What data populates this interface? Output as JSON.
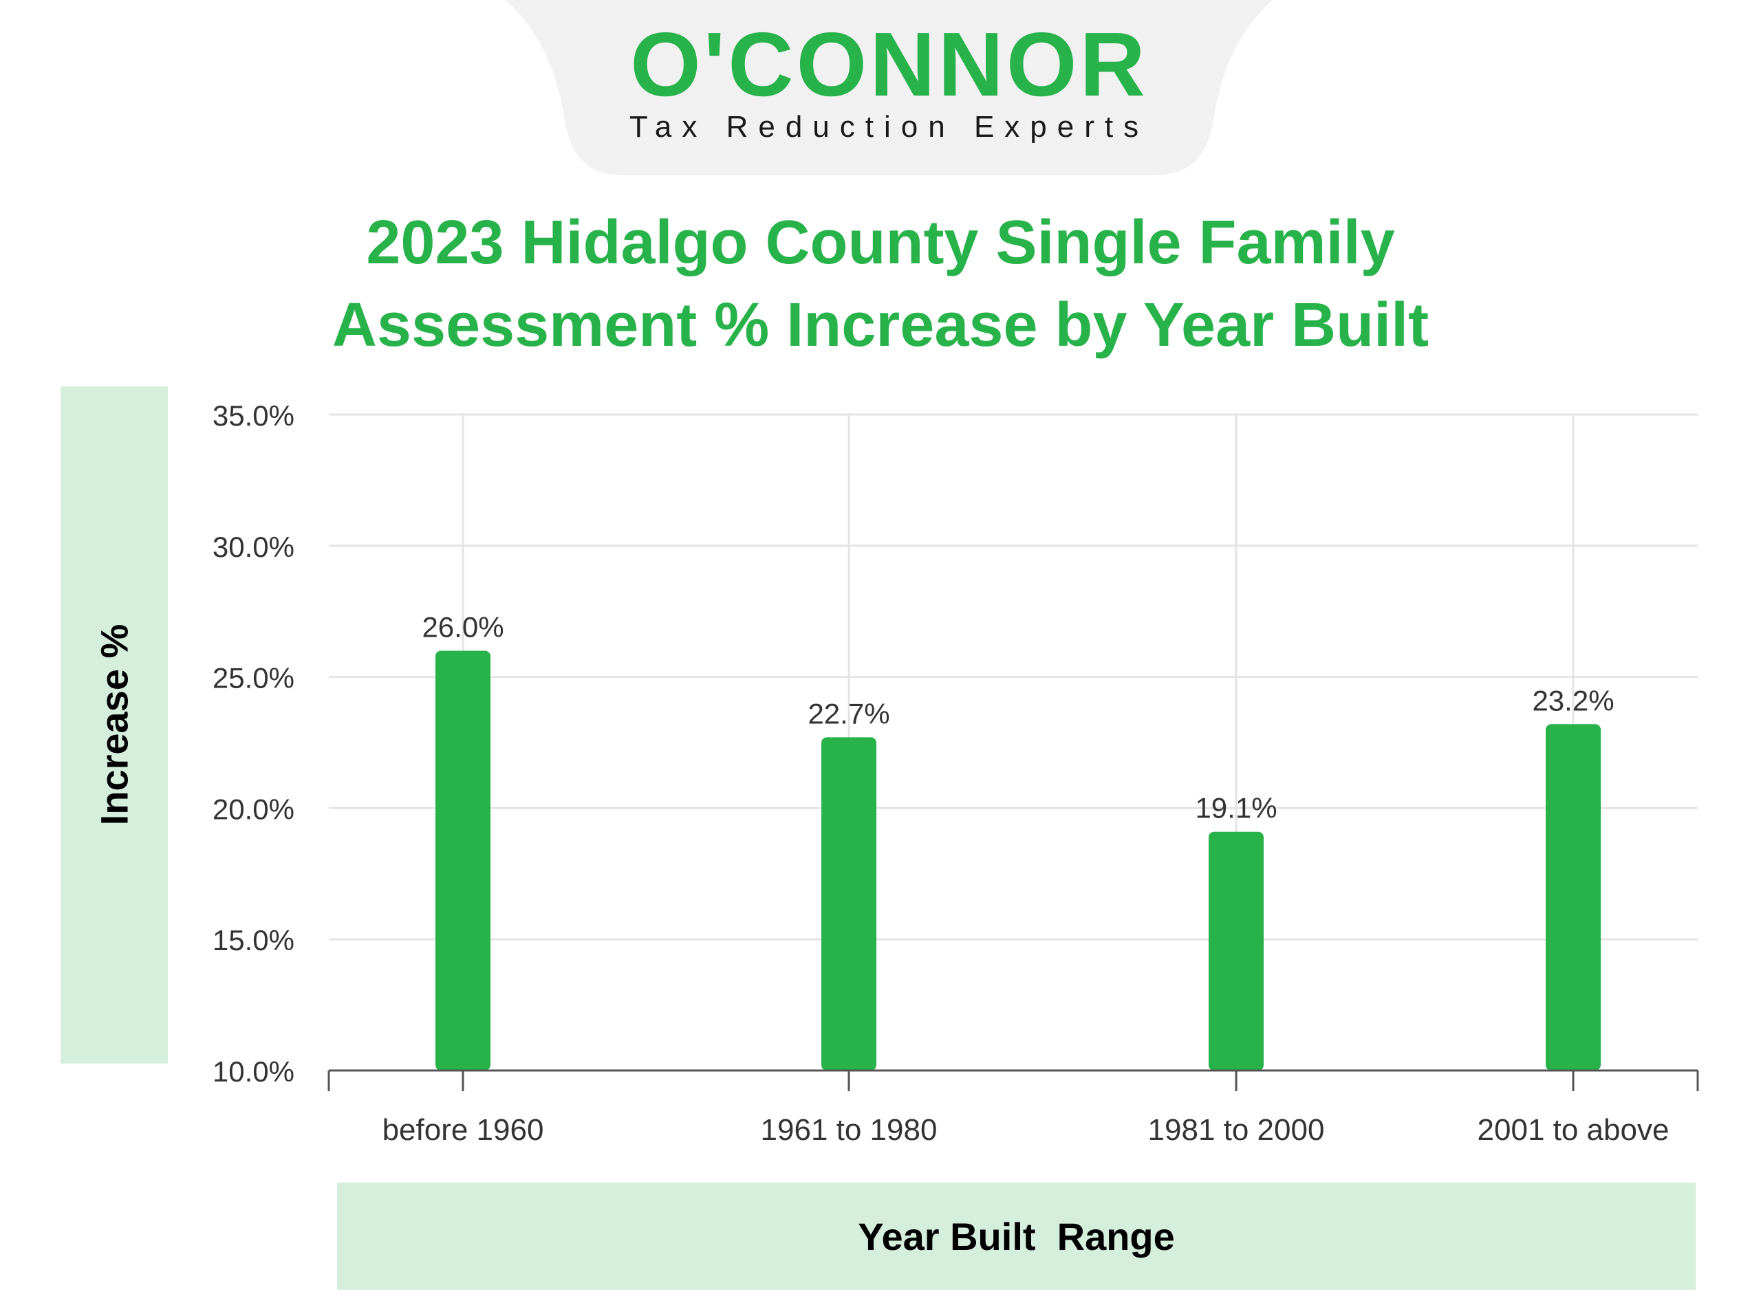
{
  "logo": {
    "brand": "O'CONNOR",
    "tagline": "Tax Reduction Experts"
  },
  "colors": {
    "accent": "#27b24a",
    "label_box": "#d6efdc",
    "grid": "#e4e4e4",
    "axis": "#555555",
    "logo_tab": "#f1f1f1"
  },
  "chart_data": {
    "type": "bar",
    "title": [
      "2023 Hidalgo County Single Family",
      "Assessment % Increase by Year Built"
    ],
    "xlabel": "Year Built  Range",
    "ylabel": "Increase %",
    "categories": [
      "before 1960",
      "1961 to 1980",
      "1981 to 2000",
      "2001 to above"
    ],
    "values": [
      26.0,
      22.7,
      19.1,
      23.2
    ],
    "data_labels": [
      "26.0%",
      "22.7%",
      "19.1%",
      "23.2%"
    ],
    "ylim": [
      10,
      35
    ],
    "yticks": [
      35,
      30,
      25,
      20,
      15,
      10
    ],
    "ytick_labels": [
      "35.0%",
      "30.0%",
      "25.0%",
      "20.0%",
      "15.0%",
      "10.0%"
    ],
    "grid": true,
    "legend": "none"
  }
}
